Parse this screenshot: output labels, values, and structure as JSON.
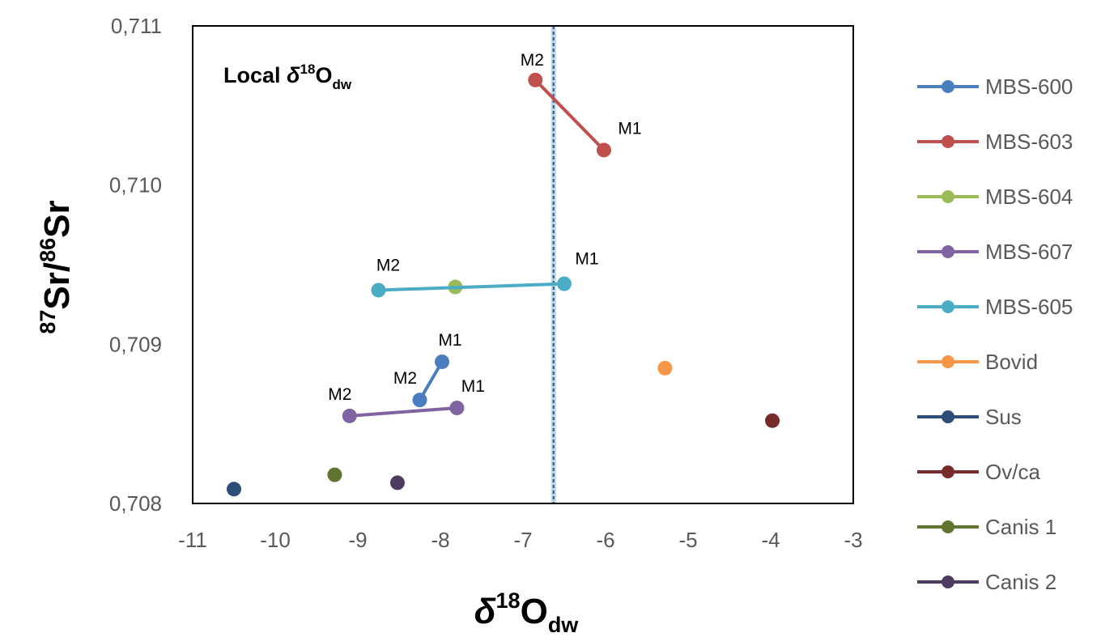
{
  "chart_data": {
    "type": "scatter",
    "xlabel": {
      "delta": "δ",
      "sup": "18",
      "main": "O",
      "sub": "dw"
    },
    "ylabel": {
      "sup1": "87",
      "main1": "Sr",
      "slash": "/",
      "sup2": "86",
      "main2": "Sr"
    },
    "annotation": {
      "prefix": "Local ",
      "delta": "δ",
      "sup": "18",
      "main": "O",
      "sub": "dw"
    },
    "xlim": [
      -11,
      -3
    ],
    "ylim": [
      0.708,
      0.711
    ],
    "x_ticks": [
      {
        "value": -11,
        "label": "-11"
      },
      {
        "value": -10,
        "label": "-10"
      },
      {
        "value": -9,
        "label": "-9"
      },
      {
        "value": -8,
        "label": "-8"
      },
      {
        "value": -7,
        "label": "-7"
      },
      {
        "value": -6,
        "label": "-6"
      },
      {
        "value": -5,
        "label": "-5"
      },
      {
        "value": -4,
        "label": "-4"
      },
      {
        "value": -3,
        "label": "-3"
      }
    ],
    "y_ticks": [
      {
        "value": 0.708,
        "label": "0,708"
      },
      {
        "value": 0.709,
        "label": "0,709"
      },
      {
        "value": 0.71,
        "label": "0,710"
      },
      {
        "value": 0.711,
        "label": "0,711"
      }
    ],
    "grid": false,
    "reference_line": {
      "orientation": "vertical",
      "x": -6.63,
      "style": "dashed",
      "color": "#2f5597"
    },
    "legend_position": "right",
    "series": [
      {
        "name": "MBS-600",
        "color": "#4a7ebf",
        "points": [
          {
            "x": -7.98,
            "y": 0.70889,
            "label": "M1"
          },
          {
            "x": -8.25,
            "y": 0.70865,
            "label": "M2"
          }
        ]
      },
      {
        "name": "MBS-603",
        "color": "#c0504d",
        "points": [
          {
            "x": -6.02,
            "y": 0.71022,
            "label": "M1"
          },
          {
            "x": -6.85,
            "y": 0.71066,
            "label": "M2"
          }
        ]
      },
      {
        "name": "MBS-604",
        "color": "#9bbb59",
        "points": [
          {
            "x": -7.82,
            "y": 0.70936,
            "label": ""
          }
        ]
      },
      {
        "name": "MBS-607",
        "color": "#8064a2",
        "points": [
          {
            "x": -7.8,
            "y": 0.7086,
            "label": "M1"
          },
          {
            "x": -9.1,
            "y": 0.70855,
            "label": "M2"
          }
        ]
      },
      {
        "name": "MBS-605",
        "color": "#4bacc6",
        "points": [
          {
            "x": -6.5,
            "y": 0.70938,
            "label": "M1"
          },
          {
            "x": -8.75,
            "y": 0.70934,
            "label": "M2"
          }
        ]
      },
      {
        "name": "Bovid",
        "color": "#f79646",
        "points": [
          {
            "x": -5.28,
            "y": 0.70885,
            "label": ""
          }
        ]
      },
      {
        "name": "Sus",
        "color": "#2c4d75",
        "points": [
          {
            "x": -10.5,
            "y": 0.70809,
            "label": ""
          }
        ]
      },
      {
        "name": "Ov/ca",
        "color": "#772c2a",
        "points": [
          {
            "x": -3.98,
            "y": 0.70852,
            "label": ""
          }
        ]
      },
      {
        "name": "Canis 1",
        "color": "#5f7530",
        "points": [
          {
            "x": -9.28,
            "y": 0.70818,
            "label": ""
          }
        ]
      },
      {
        "name": "Canis 2",
        "color": "#4d3b62",
        "points": [
          {
            "x": -8.52,
            "y": 0.70813,
            "label": ""
          }
        ]
      }
    ]
  }
}
